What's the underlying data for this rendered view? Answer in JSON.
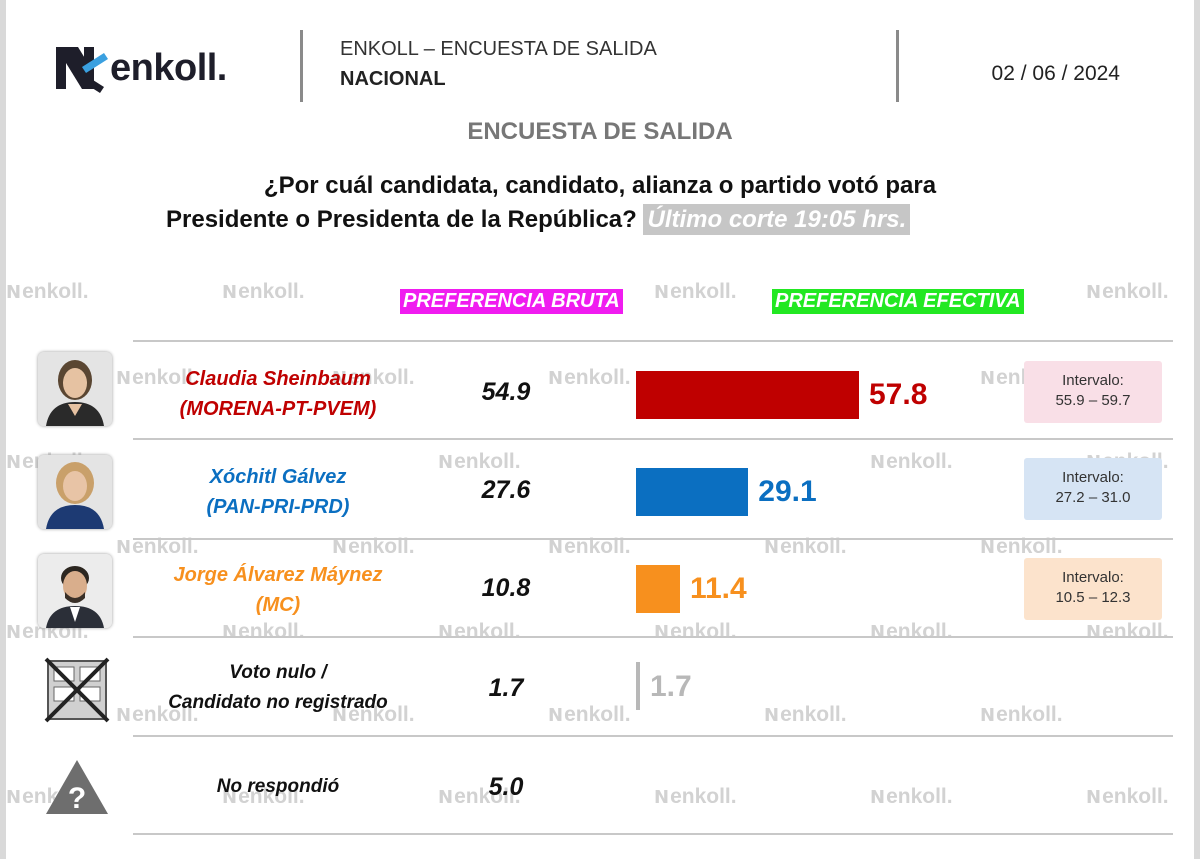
{
  "header": {
    "logo_text": "enkoll.",
    "title": "ENKOLL – ENCUESTA DE SALIDA",
    "subtitle": "NACIONAL",
    "date": "02 / 06 / 2024"
  },
  "survey_label": "ENCUESTA DE SALIDA",
  "question": {
    "line1": "¿Por cuál candidata, candidato, alianza o partido votó para",
    "line2": "Presidente o Presidenta de la República?",
    "cut": "Último corte 19:05 hrs."
  },
  "watermark_text": "enkoll.",
  "colors": {
    "sheinbaum": "#bf0000",
    "galvez": "#0b6fc1",
    "maynez": "#f7901e",
    "nulo": "#b8b8b8",
    "bruta_header_bg": "#f01cf0",
    "efectiva_header_bg": "#22e822"
  },
  "chart_data": {
    "type": "bar",
    "column_headers": {
      "bruta": "PREFERENCIA BRUTA",
      "efectiva": "PREFERENCIA EFECTIVA"
    },
    "rows": [
      {
        "name": "Claudia Sheinbaum",
        "party": "(MORENA-PT-PVEM)",
        "bruta": "54.9",
        "efectiva": 57.8,
        "interval_label": "Intervalo:",
        "interval": "55.9 – 59.7"
      },
      {
        "name": "Xóchitl Gálvez",
        "party": "(PAN-PRI-PRD)",
        "bruta": "27.6",
        "efectiva": 29.1,
        "interval_label": "Intervalo:",
        "interval": "27.2 – 31.0"
      },
      {
        "name": "Jorge Álvarez Máynez",
        "party": "(MC)",
        "bruta": "10.8",
        "efectiva": 11.4,
        "interval_label": "Intervalo:",
        "interval": "10.5 – 12.3"
      },
      {
        "name": "Voto nulo /",
        "party": "Candidato no registrado",
        "bruta": "1.7",
        "efectiva": 1.7
      },
      {
        "name": "No respondió",
        "bruta": "5.0"
      }
    ]
  }
}
